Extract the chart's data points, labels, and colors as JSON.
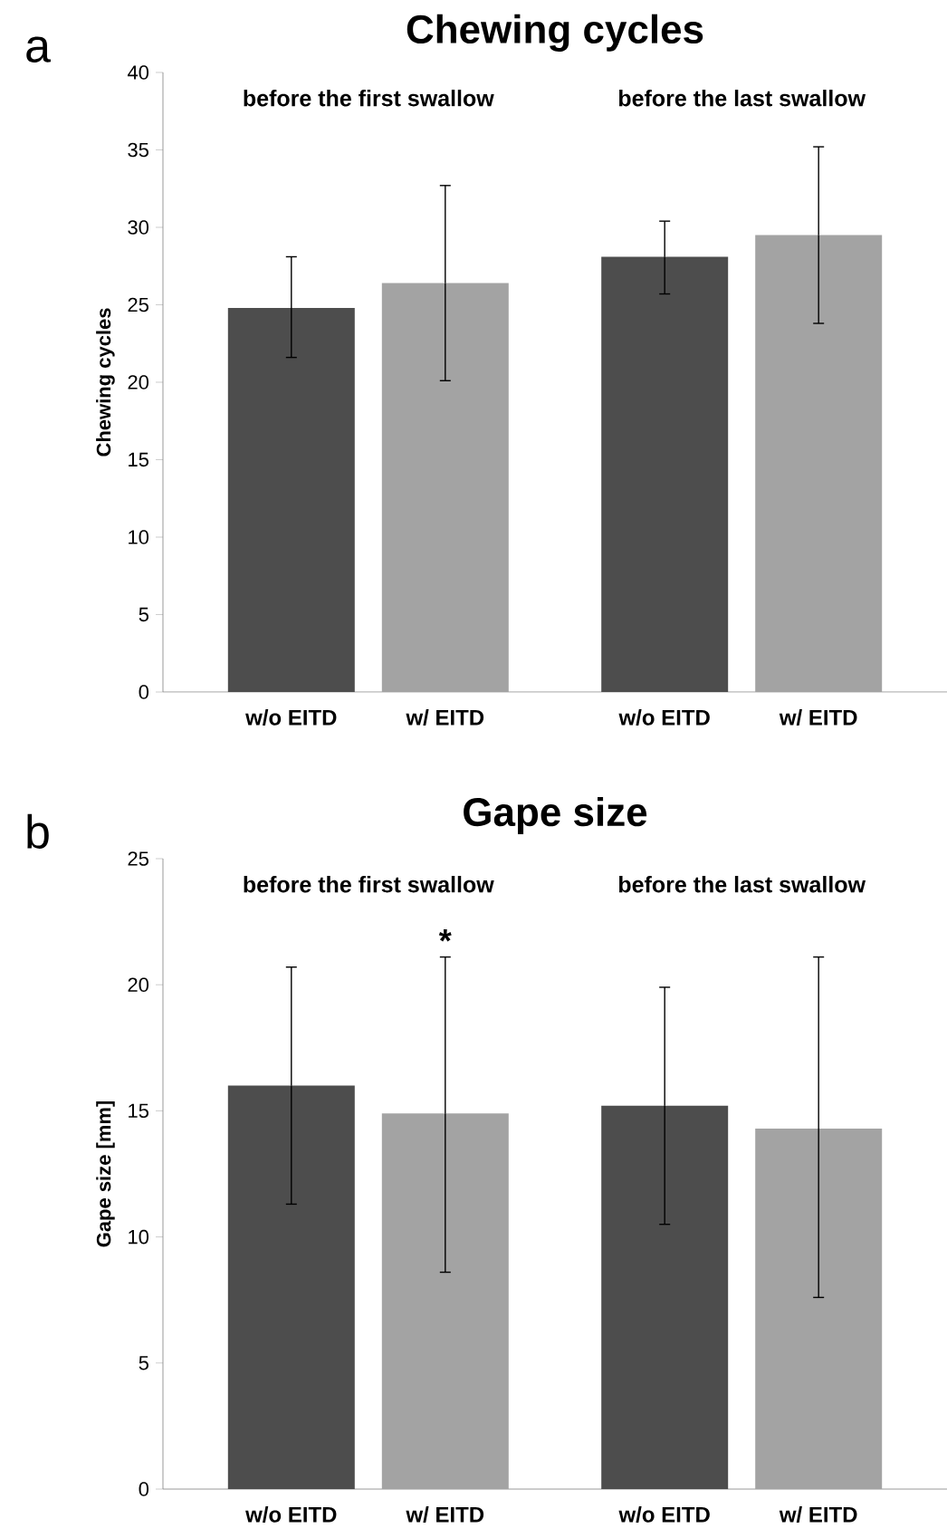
{
  "chart_data": [
    {
      "type": "bar",
      "title": "Chewing cycles",
      "ylabel": "Chewing cycles",
      "categories": [
        "before the first swallow",
        "before the last swallow"
      ],
      "series": [
        {
          "name": "w/o EITD",
          "color": "#4d4d4d",
          "values": [
            24.8,
            28.1
          ],
          "errors": [
            [
              21.6,
              28.1
            ],
            [
              25.7,
              30.4
            ]
          ]
        },
        {
          "name": "w/ EITD",
          "color": "#a3a3a3",
          "values": [
            26.4,
            29.5
          ],
          "errors": [
            [
              20.1,
              32.7
            ],
            [
              23.8,
              35.2
            ]
          ]
        }
      ],
      "ylim": [
        0,
        40
      ],
      "yticks": [
        0,
        5,
        10,
        15,
        20,
        25,
        30,
        35,
        40
      ],
      "annotations": [
        "a"
      ]
    },
    {
      "type": "bar",
      "title": "Gape size",
      "ylabel": "Gape size [mm]",
      "categories": [
        "before the first swallow",
        "before the last swallow"
      ],
      "series": [
        {
          "name": "w/o EITD",
          "color": "#4d4d4d",
          "values": [
            16.0,
            15.2
          ],
          "errors": [
            [
              11.3,
              20.7
            ],
            [
              10.5,
              19.9
            ]
          ]
        },
        {
          "name": "w/ EITD",
          "color": "#a3a3a3",
          "values": [
            14.9,
            14.3
          ],
          "errors": [
            [
              8.6,
              21.1
            ],
            [
              7.6,
              21.1
            ]
          ]
        }
      ],
      "ylim": [
        0,
        25
      ],
      "yticks": [
        0,
        5,
        10,
        15,
        20,
        25
      ],
      "annotations": [
        "b",
        "*"
      ]
    }
  ]
}
